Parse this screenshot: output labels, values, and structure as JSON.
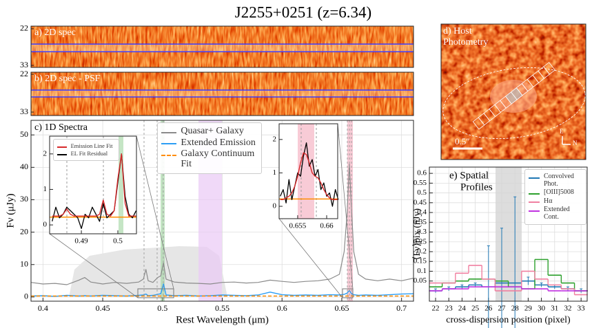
{
  "title": "J2255+0251 (z=6.34)",
  "chart_data": [
    {
      "type": "image",
      "label": "a) 2D spec",
      "ylim": [
        21.2,
        33.6
      ],
      "y_inverted": true,
      "yticks": [
        22,
        33
      ],
      "aperture": [
        26.6,
        28.9
      ],
      "aperture_color": "#3b3bff"
    },
    {
      "type": "image",
      "label": "b) 2D spec - PSF",
      "ylim": [
        21.4,
        34.0
      ],
      "y_inverted": true,
      "yticks": [
        22,
        33
      ],
      "aperture": [
        26.6,
        28.6
      ],
      "aperture_color": "#3b3bff"
    },
    {
      "type": "line",
      "label": "c) 1D Spectra",
      "xlabel": "Rest Wavelength (μm)",
      "ylabel": "Fν (μJy)",
      "x": [
        0.39,
        0.4,
        0.41,
        0.42,
        0.43,
        0.435,
        0.44,
        0.45,
        0.46,
        0.47,
        0.48,
        0.484,
        0.4861,
        0.488,
        0.492,
        0.496,
        0.4985,
        0.5008,
        0.503,
        0.51,
        0.52,
        0.53,
        0.54,
        0.55,
        0.56,
        0.57,
        0.58,
        0.59,
        0.6,
        0.61,
        0.62,
        0.63,
        0.64,
        0.648,
        0.652,
        0.6545,
        0.6563,
        0.658,
        0.66,
        0.664,
        0.67,
        0.68,
        0.69,
        0.7,
        0.71
      ],
      "series": [
        {
          "name": "Quasar+ Galaxy",
          "color": "#8a8a8a",
          "values": [
            4.5,
            4.0,
            4.2,
            3.8,
            5.2,
            6.0,
            4.6,
            4.0,
            4.5,
            4.2,
            4.6,
            5.5,
            8.5,
            5.0,
            4.5,
            6.0,
            6.5,
            10.5,
            5.5,
            4.6,
            4.3,
            4.2,
            4.0,
            4.5,
            4.6,
            4.3,
            4.5,
            5.2,
            4.8,
            4.5,
            4.8,
            5.0,
            5.5,
            7.0,
            14.0,
            26.0,
            41.0,
            28.0,
            14.0,
            7.0,
            5.5,
            5.0,
            5.5,
            5.0,
            5.8
          ]
        },
        {
          "name": "Extended Emission",
          "color": "#2a9df4",
          "values": [
            0.3,
            0.4,
            0.2,
            0.5,
            0.3,
            0.4,
            0.3,
            0.5,
            0.4,
            0.3,
            0.5,
            0.6,
            0.9,
            0.4,
            0.5,
            0.8,
            1.0,
            4.0,
            0.6,
            0.4,
            0.5,
            0.3,
            0.4,
            0.6,
            0.5,
            0.4,
            0.6,
            1.5,
            0.7,
            0.5,
            0.6,
            0.5,
            0.7,
            0.6,
            0.8,
            1.2,
            2.0,
            1.1,
            0.7,
            0.5,
            0.6,
            0.5,
            0.7,
            0.9,
            1.0
          ]
        },
        {
          "name": "Galaxy Continuum Fit",
          "color": "#ff8c00",
          "dash": true,
          "values": [
            0.3,
            0.3,
            0.3,
            0.3,
            0.3,
            0.3,
            0.3,
            0.3,
            0.3,
            0.3,
            0.3,
            0.3,
            0.3,
            0.3,
            0.3,
            0.3,
            0.3,
            0.3,
            0.3,
            0.3,
            0.3,
            0.3,
            0.3,
            0.3,
            0.3,
            0.3,
            0.3,
            0.3,
            0.3,
            0.3,
            0.3,
            0.3,
            0.3,
            0.3,
            0.3,
            0.3,
            0.3,
            0.3,
            0.3,
            0.3,
            0.3,
            0.3,
            0.3,
            0.3,
            0.3
          ]
        }
      ],
      "xlim": [
        0.39,
        0.71
      ],
      "ylim": [
        -1.3,
        54.5
      ],
      "xticks": [
        0.4,
        0.45,
        0.5,
        0.55,
        0.6,
        0.65,
        0.7
      ],
      "yticks": [
        0,
        10,
        20,
        30,
        40,
        50
      ],
      "grid": true
    },
    {
      "type": "line",
      "x": [
        0.482,
        0.483,
        0.484,
        0.485,
        0.486,
        0.487,
        0.488,
        0.489,
        0.49,
        0.491,
        0.492,
        0.493,
        0.494,
        0.495,
        0.496,
        0.497,
        0.498,
        0.499,
        0.5,
        0.501,
        0.502,
        0.503,
        0.504,
        0.505
      ],
      "series": [
        {
          "name": "Emission Line Fit",
          "color": "#d62728",
          "values": [
            0.25,
            0.25,
            0.25,
            0.3,
            0.45,
            0.3,
            0.25,
            0.25,
            0.25,
            0.25,
            0.25,
            0.25,
            0.25,
            0.3,
            0.7,
            0.3,
            0.25,
            0.4,
            1.3,
            2.0,
            0.6,
            0.25,
            0.25,
            0.25
          ]
        },
        {
          "name": "EL Fit Residual",
          "color": "#000000",
          "values": [
            0.1,
            0.5,
            0.2,
            0.3,
            0.5,
            0.4,
            0.3,
            0.2,
            -0.1,
            0.3,
            0.2,
            0.5,
            0.3,
            0.1,
            0.6,
            0.2,
            0.3,
            0.4,
            1.2,
            2.0,
            0.8,
            0.3,
            0.2,
            0.4
          ]
        }
      ],
      "xlim": [
        0.4813,
        0.5051
      ],
      "ylim": [
        -0.25,
        2.5
      ],
      "xticks": [
        0.49,
        0.5
      ],
      "yticks": [
        0,
        1,
        2
      ]
    },
    {
      "type": "line",
      "x": [
        0.652,
        0.6525,
        0.653,
        0.6535,
        0.654,
        0.6545,
        0.655,
        0.6555,
        0.656,
        0.6565,
        0.657,
        0.6575,
        0.658,
        0.6585,
        0.659,
        0.6595,
        0.66,
        0.6605,
        0.661,
        0.6615,
        0.662
      ],
      "series": [
        {
          "color": "#d62728",
          "values": [
            0.2,
            0.2,
            0.25,
            0.3,
            0.4,
            0.6,
            0.9,
            1.3,
            1.6,
            1.55,
            1.3,
            1.0,
            0.9,
            0.85,
            0.7,
            0.5,
            0.35,
            0.25,
            0.2,
            0.2,
            0.2
          ]
        },
        {
          "color": "#000000",
          "values": [
            0.3,
            0.5,
            0.1,
            0.8,
            0.2,
            0.6,
            1.0,
            0.9,
            1.5,
            1.9,
            1.2,
            1.4,
            0.9,
            1.1,
            0.5,
            0.7,
            0.3,
            0.4,
            0.0,
            0.5,
            0.2
          ]
        }
      ],
      "xlim": [
        0.6518,
        0.6619
      ],
      "ylim": [
        -0.37,
        2.47
      ],
      "xticks": [
        0.655,
        0.66
      ],
      "yticks": [
        0,
        1,
        2
      ]
    },
    {
      "type": "image",
      "label_lines": [
        "d) Host",
        "Photometry"
      ],
      "scale_label": "0.5″",
      "compass": [
        "E",
        "N"
      ]
    },
    {
      "type": "step",
      "label_lines": [
        "e) Spatial",
        "Profiles"
      ],
      "xlabel": "cross-dispersion position (pixel)",
      "ylabel": "⟨Fν⟩pix (nJy)",
      "x": [
        22,
        23,
        24,
        25,
        26,
        27,
        28,
        29,
        30,
        31,
        32,
        33
      ],
      "series": [
        {
          "name": "Convolved Phot.",
          "color": "#1f77b4",
          "values": [
            0.0,
            0.01,
            0.02,
            0.03,
            0.02,
            0.04,
            0.04,
            0.05,
            0.03,
            0.02,
            0.01,
            0.0
          ],
          "errors": [
            0.01,
            0.01,
            0.01,
            0.01,
            0.21,
            0.28,
            0.44,
            0.02,
            0.01,
            0.01,
            0.01,
            0.01
          ]
        },
        {
          "name": "[OIII]5008",
          "color": "#2ca02c",
          "values": [
            0.02,
            0.04,
            0.05,
            0.06,
            0.06,
            0.05,
            0.02,
            0.01,
            0.16,
            0.08,
            0.04,
            0.0
          ]
        },
        {
          "name": "Hα",
          "color": "#f07fa0",
          "values": [
            0.04,
            0.04,
            0.09,
            0.13,
            0.06,
            0.0,
            0.0,
            0.1,
            0.06,
            0.03,
            0.01,
            -0.02
          ]
        },
        {
          "name": "Extended Cont.",
          "color": "#c030e0",
          "values": [
            0.0,
            0.01,
            0.01,
            0.02,
            0.02,
            0.02,
            0.02,
            0.01,
            0.01,
            0.0,
            0.0,
            0.0
          ]
        }
      ],
      "xlim": [
        21.53,
        33.46
      ],
      "ylim": [
        -0.053,
        0.632
      ],
      "xticks": [
        22,
        23,
        24,
        25,
        26,
        27,
        28,
        29,
        30,
        31,
        32,
        33
      ],
      "yticks": [
        0.05,
        0.1,
        0.15,
        0.2,
        0.25,
        0.3,
        0.35,
        0.4,
        0.45,
        0.5,
        0.55,
        0.6
      ],
      "grid": true
    }
  ]
}
